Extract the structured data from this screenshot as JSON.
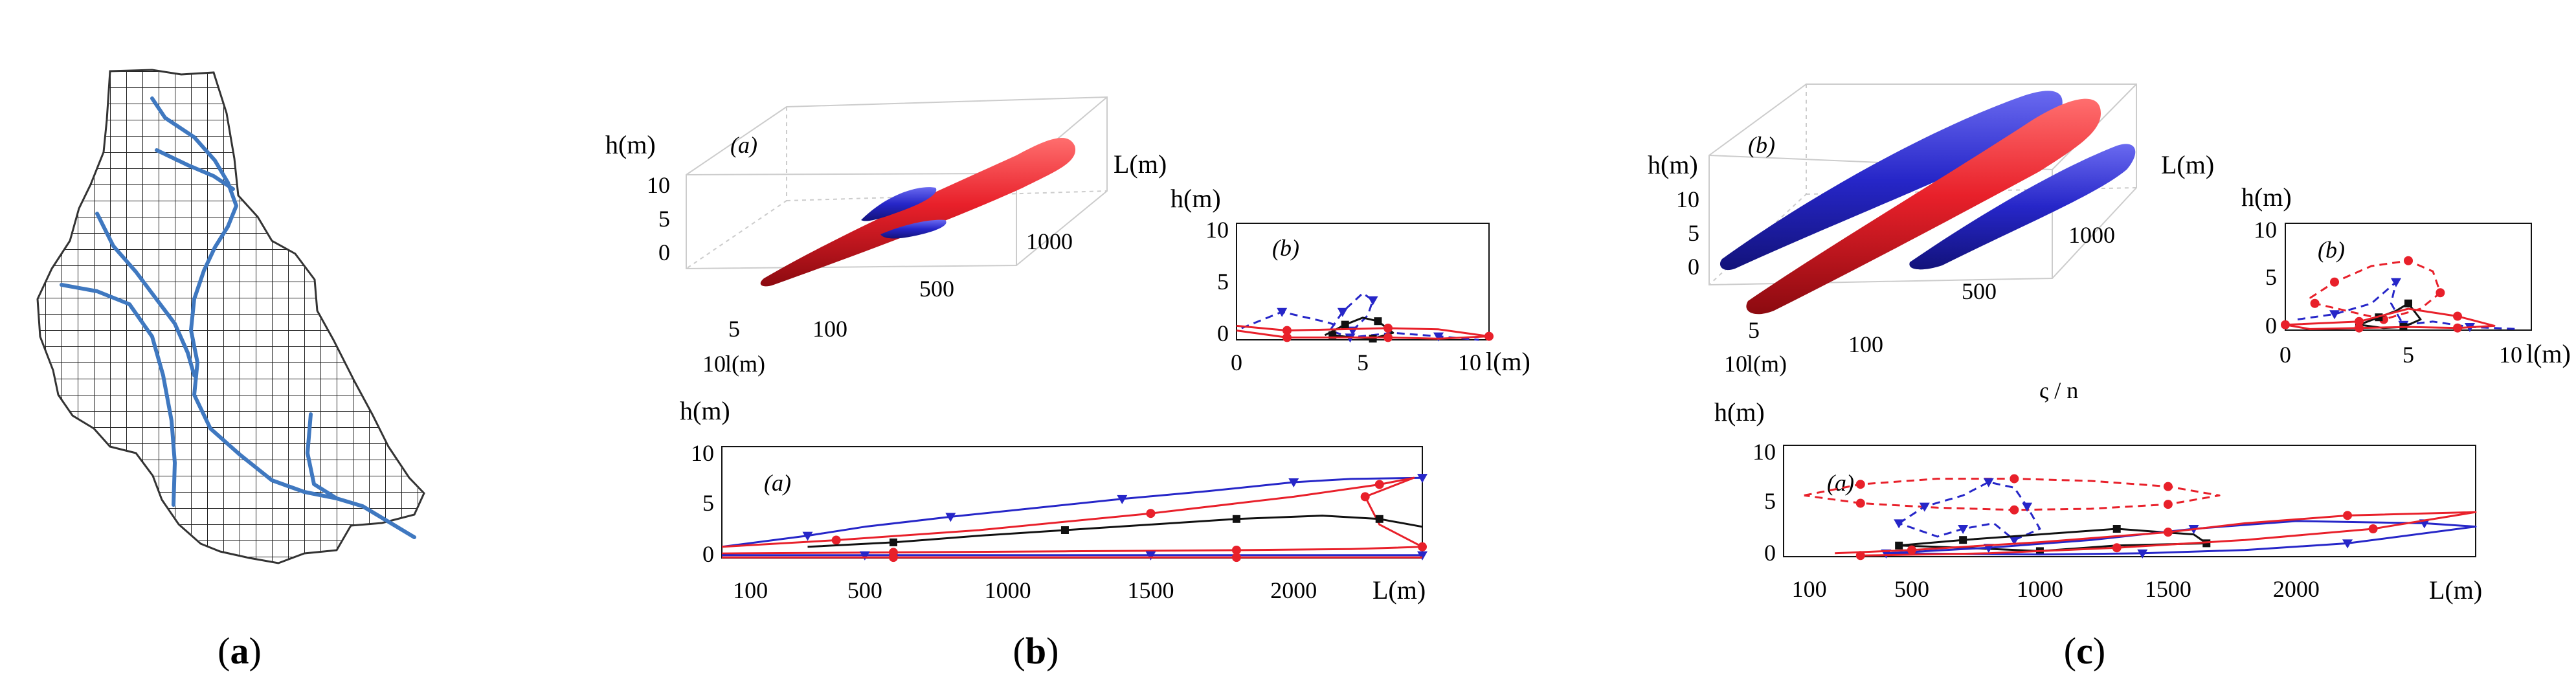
{
  "figure": {
    "captions": [
      "(a)",
      "(b)",
      "(c)"
    ],
    "letters": [
      "a",
      "b",
      "c"
    ],
    "stray_text": "ς / n"
  },
  "colors": {
    "red": "#e8202a",
    "blue": "#2626c8",
    "river": "#3f78c0",
    "black": "#111111"
  },
  "chart_data": [
    {
      "id": "b-3d",
      "type": "surface3d",
      "inset_label": "(a)",
      "axes": {
        "vertical_label": "h(m)",
        "length_label": "L(m)",
        "width_label": "l(m)"
      },
      "vertical_ticks": [
        "10",
        "5",
        "0"
      ],
      "length_ticks": [
        "100",
        "500",
        "1000"
      ],
      "width_ticks": [
        "5",
        "10"
      ]
    },
    {
      "id": "b-cross",
      "type": "line",
      "inset_label": "(b)",
      "ylabel": "h(m)",
      "xlabel": "l(m)",
      "xlim": [
        0,
        10
      ],
      "ylim": [
        0,
        10
      ],
      "xticks": [
        "0",
        "5",
        "10"
      ],
      "yticks": [
        "10",
        "5",
        "0"
      ],
      "series": [
        {
          "name": "blue dashed",
          "color": "blue",
          "dash": true,
          "marker": "triangle",
          "x": [
            0.2,
            1.8,
            3.6,
            4.6,
            5.2,
            5.4,
            5.0,
            4.2,
            3.7,
            4.5,
            6.2,
            8.0,
            9.6
          ],
          "y": [
            1.0,
            2.4,
            1.5,
            0.8,
            2.1,
            3.4,
            4.0,
            2.4,
            0.8,
            0.2,
            0.6,
            0.3,
            0.0
          ]
        },
        {
          "name": "black",
          "color": "black",
          "dash": false,
          "marker": "square",
          "x": [
            3.5,
            4.3,
            5.0,
            5.6,
            6.2,
            5.4,
            4.6,
            3.8
          ],
          "y": [
            0.4,
            1.3,
            1.9,
            1.6,
            0.6,
            0.1,
            0.2,
            0.4
          ]
        },
        {
          "name": "red",
          "color": "red",
          "dash": false,
          "marker": "circle",
          "x": [
            0,
            2,
            4,
            6,
            8,
            10,
            8,
            6,
            4,
            2,
            0
          ],
          "y": [
            1.2,
            0.8,
            0.9,
            1.0,
            0.9,
            0.3,
            0.1,
            0.2,
            0.2,
            0.2,
            0.8
          ]
        }
      ]
    },
    {
      "id": "b-long",
      "type": "line",
      "inset_label": "(a)",
      "ylabel": "h(m)",
      "xlabel": "L(m)",
      "xlim": [
        0,
        2450
      ],
      "ylim": [
        0,
        10
      ],
      "xticks": [
        "100",
        "500",
        "1000",
        "1500",
        "2000"
      ],
      "yticks": [
        "10",
        "5",
        "0"
      ],
      "xtick_values": [
        100,
        500,
        1000,
        1500,
        2000
      ],
      "series": [
        {
          "name": "blue",
          "color": "blue",
          "dash": false,
          "marker": "triangle",
          "x": [
            0,
            300,
            500,
            800,
            1100,
            1400,
            1700,
            2000,
            2200,
            2450
          ],
          "y": [
            1.0,
            2.0,
            2.8,
            3.7,
            4.5,
            5.3,
            6.0,
            6.8,
            7.1,
            7.2
          ]
        },
        {
          "name": "red",
          "color": "red",
          "dash": false,
          "marker": "circle",
          "x": [
            0,
            400,
            900,
            1500,
            2000,
            2300,
            2420,
            2250,
            2300,
            2450,
            2200,
            1800,
            1200,
            600,
            0
          ],
          "y": [
            1.0,
            1.6,
            2.5,
            4.0,
            5.5,
            6.6,
            7.2,
            5.5,
            3.0,
            1.0,
            0.8,
            0.7,
            0.6,
            0.5,
            0.4
          ]
        },
        {
          "name": "black",
          "color": "black",
          "dash": false,
          "marker": "square",
          "x": [
            300,
            600,
            900,
            1200,
            1500,
            1800,
            2100,
            2300,
            2450
          ],
          "y": [
            1.0,
            1.4,
            2.0,
            2.5,
            3.0,
            3.5,
            3.8,
            3.5,
            2.8
          ]
        },
        {
          "name": "base blue",
          "color": "blue",
          "dash": false,
          "marker": "triangle",
          "x": [
            0,
            500,
            1000,
            1500,
            2000,
            2450
          ],
          "y": [
            0.25,
            0.25,
            0.25,
            0.25,
            0.25,
            0.25
          ]
        },
        {
          "name": "base red",
          "color": "red",
          "dash": false,
          "marker": "circle",
          "x": [
            0,
            600,
            1200,
            1800,
            2450
          ],
          "y": [
            0.05,
            0.05,
            0.05,
            0.05,
            0.05
          ]
        }
      ]
    },
    {
      "id": "c-3d",
      "type": "surface3d",
      "inset_label": "(b)",
      "axes": {
        "vertical_label": "h(m)",
        "length_label": "L(m)",
        "width_label": "l(m)"
      },
      "vertical_ticks": [
        "10",
        "5",
        "0"
      ],
      "length_ticks": [
        "100",
        "500",
        "1000"
      ],
      "width_ticks": [
        "5",
        "10"
      ]
    },
    {
      "id": "c-cross",
      "type": "line",
      "inset_label": "(b)",
      "ylabel": "h(m)",
      "xlabel": "l(m)",
      "xlim": [
        0,
        10
      ],
      "ylim": [
        0,
        10
      ],
      "xticks": [
        "0",
        "5",
        "10"
      ],
      "yticks": [
        "10",
        "5",
        "0"
      ],
      "series": [
        {
          "name": "red dashed",
          "color": "red",
          "dash": true,
          "marker": "circle",
          "x": [
            1.0,
            2.0,
            3.5,
            5.0,
            6.0,
            6.3,
            5.5,
            4.0,
            2.5,
            1.2,
            1.0
          ],
          "y": [
            3.0,
            4.5,
            6.0,
            6.5,
            5.5,
            3.5,
            2.0,
            1.0,
            1.8,
            2.5,
            3.0
          ]
        },
        {
          "name": "blue dashed",
          "color": "blue",
          "dash": true,
          "marker": "triangle",
          "x": [
            0.5,
            2.0,
            3.5,
            4.5,
            4.3,
            4.8,
            6.0,
            7.5,
            9.5
          ],
          "y": [
            1.0,
            1.5,
            2.5,
            4.5,
            2.5,
            0.5,
            0.8,
            0.3,
            0.1
          ]
        },
        {
          "name": "black",
          "color": "black",
          "dash": false,
          "marker": "square",
          "x": [
            3.0,
            3.8,
            4.5,
            5.0,
            5.5,
            4.8,
            4.0,
            3.0
          ],
          "y": [
            0.5,
            1.2,
            1.8,
            2.5,
            1.0,
            0.3,
            0.2,
            0.5
          ]
        },
        {
          "name": "red",
          "color": "red",
          "dash": false,
          "marker": "circle",
          "x": [
            0,
            3,
            5,
            7,
            8.5,
            7,
            5,
            3,
            1,
            0
          ],
          "y": [
            0.5,
            0.8,
            2.0,
            1.3,
            0.4,
            0.2,
            0.3,
            0.2,
            0.1,
            0.5
          ]
        }
      ]
    },
    {
      "id": "c-long",
      "type": "line",
      "inset_label": "(a)",
      "ylabel": "h(m)",
      "xlabel": "L(m)",
      "xlim": [
        0,
        2700
      ],
      "ylim": [
        0,
        10
      ],
      "xticks": [
        "100",
        "500",
        "1000",
        "1500",
        "2000"
      ],
      "yticks": [
        "10",
        "5",
        "0"
      ],
      "xtick_values": [
        100,
        500,
        1000,
        1500,
        2000
      ],
      "series": [
        {
          "name": "red dashed",
          "color": "red",
          "dash": true,
          "marker": "circle",
          "x": [
            80,
            300,
            600,
            900,
            1200,
            1500,
            1700,
            1500,
            1200,
            900,
            600,
            300,
            80
          ],
          "y": [
            5.5,
            6.5,
            7.0,
            7.0,
            6.8,
            6.3,
            5.5,
            4.7,
            4.3,
            4.2,
            4.4,
            4.8,
            5.5
          ]
        },
        {
          "name": "blue dashed",
          "color": "blue",
          "dash": true,
          "marker": "triangle",
          "x": [
            450,
            550,
            700,
            800,
            900,
            950,
            1000,
            900,
            820,
            700,
            600,
            450
          ],
          "y": [
            3.0,
            4.5,
            5.5,
            6.7,
            6.2,
            4.5,
            2.5,
            1.5,
            3.0,
            2.5,
            1.8,
            3.0
          ]
        },
        {
          "name": "black",
          "color": "black",
          "dash": false,
          "marker": "square",
          "x": [
            450,
            700,
            1000,
            1300,
            1600,
            1650,
            1300,
            1000,
            700,
            450
          ],
          "y": [
            1.0,
            1.5,
            2.0,
            2.5,
            2.0,
            1.2,
            1.0,
            0.5,
            0.8,
            1.0
          ]
        },
        {
          "name": "blue",
          "color": "blue",
          "dash": false,
          "marker": "triangle",
          "x": [
            400,
            800,
            1200,
            1600,
            2000,
            2500,
            2700,
            2200,
            1800,
            1400,
            1000,
            400
          ],
          "y": [
            0.3,
            0.8,
            1.5,
            2.5,
            3.2,
            3.0,
            2.7,
            1.2,
            0.6,
            0.3,
            0.2,
            0.3
          ]
        },
        {
          "name": "red",
          "color": "red",
          "dash": false,
          "marker": "circle",
          "x": [
            200,
            500,
            1000,
            1500,
            1800,
            2200,
            2700,
            2300,
            1800,
            1300,
            800,
            300
          ],
          "y": [
            0.3,
            0.6,
            1.3,
            2.2,
            3.0,
            3.7,
            4.0,
            2.5,
            1.5,
            0.8,
            0.3,
            0.1
          ]
        }
      ]
    }
  ]
}
